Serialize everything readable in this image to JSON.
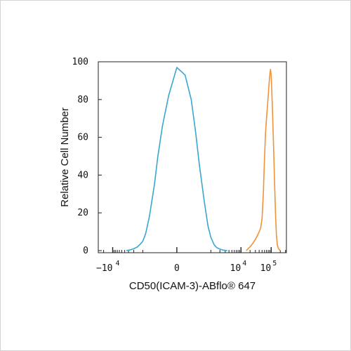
{
  "chart_data": {
    "type": "line",
    "xlabel": "CD50(ICAM-3)-ABflo® 647",
    "ylabel": "Relative Cell Number",
    "xscale": "biexponential",
    "ylim": [
      0,
      100
    ],
    "y_ticks": [
      0,
      20,
      40,
      60,
      80,
      100
    ],
    "x_ticks": [
      {
        "base": "−10",
        "exp": "4",
        "value": -10000
      },
      {
        "base": "0",
        "exp": "",
        "value": 0
      },
      {
        "base": "10",
        "exp": "4",
        "value": 10000
      },
      {
        "base": "10",
        "exp": "5",
        "value": 100000
      }
    ],
    "grid": false,
    "series": [
      {
        "color": "#3aa6d0",
        "x": [
          -3500,
          -2500,
          -2000,
          -1500,
          -1200,
          -1000,
          -800,
          -600,
          -400,
          -300,
          -200,
          -100,
          0,
          100,
          200,
          300,
          400,
          600,
          800,
          1000,
          1300,
          1600,
          2000,
          2500,
          3500
        ],
        "y": [
          0,
          0.5,
          1,
          2,
          3.5,
          5,
          9,
          18,
          35,
          50,
          66,
          82,
          97,
          93,
          80,
          62,
          46,
          26,
          13,
          7,
          3,
          1.5,
          0.8,
          0.3,
          0
        ]
      },
      {
        "color": "#f0923a",
        "x": [
          15000,
          20000,
          25000,
          30000,
          35000,
          40000,
          45000,
          50000,
          55000,
          60000,
          65000,
          70000,
          75000,
          80000,
          85000,
          90000,
          95000,
          100000,
          110000,
          120000,
          130000,
          140000,
          150000,
          160000,
          175000,
          200000
        ],
        "y": [
          0,
          2,
          4,
          6,
          8,
          10,
          12,
          17,
          30,
          48,
          62,
          70,
          76,
          82,
          88,
          93,
          96,
          93,
          75,
          55,
          35,
          18,
          8,
          3,
          1,
          0
        ]
      }
    ]
  }
}
